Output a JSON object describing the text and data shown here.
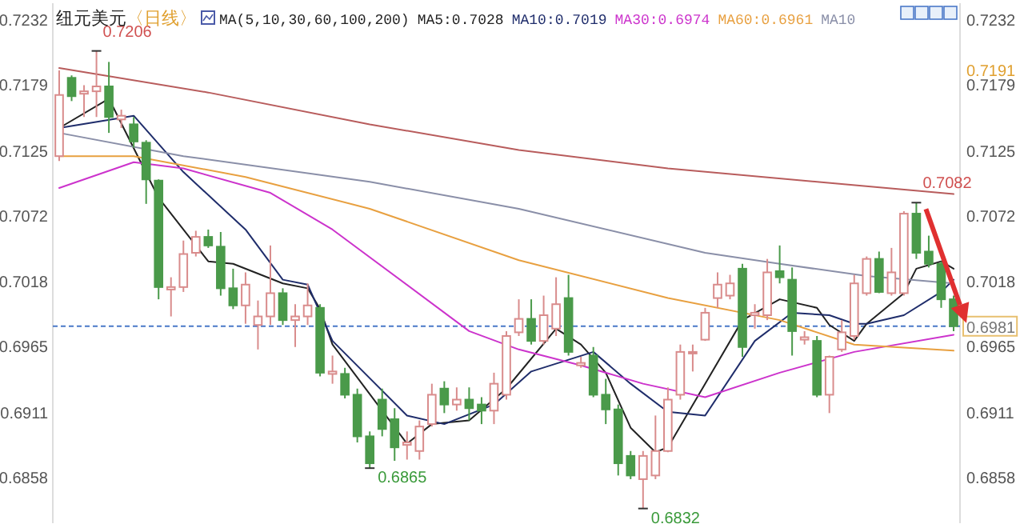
{
  "chart_data": {
    "type": "candlestick",
    "title": "纽元美元",
    "subtitle": "〈日线〉",
    "legend_title": "MA(5,10,30,60,100,200)",
    "legend": "top",
    "categories": [
      null,
      null,
      null,
      null,
      null,
      null,
      null,
      null,
      null,
      null,
      null,
      null,
      null,
      null,
      null,
      null,
      null,
      null,
      null,
      null,
      null,
      null,
      null,
      null,
      null,
      null,
      null,
      null,
      null,
      null,
      null,
      null,
      null,
      null,
      null,
      null,
      null,
      null,
      null,
      null,
      null,
      null,
      null,
      null,
      null,
      null,
      null,
      null,
      null,
      null,
      null,
      null,
      null,
      null,
      null,
      null,
      null,
      null,
      null,
      null,
      null,
      null,
      null,
      null,
      null,
      null,
      null,
      null,
      null,
      null,
      null,
      null,
      null
    ],
    "ohlc": [
      [
        0.712,
        0.719,
        0.7116,
        0.717
      ],
      [
        0.7184,
        0.7186,
        0.7165,
        0.7169
      ],
      [
        0.7171,
        0.7178,
        0.7152,
        0.7173
      ],
      [
        0.7173,
        0.7206,
        0.7152,
        0.7177
      ],
      [
        0.7177,
        0.7197,
        0.7139,
        0.7152
      ],
      [
        0.715,
        0.7158,
        0.7143,
        0.7153
      ],
      [
        0.7146,
        0.7152,
        0.7127,
        0.7132
      ],
      [
        0.7131,
        0.7133,
        0.7081,
        0.7101
      ],
      [
        0.71,
        0.7101,
        0.7003,
        0.7013
      ],
      [
        0.7011,
        0.7021,
        0.6989,
        0.7013
      ],
      [
        0.7013,
        0.7051,
        0.7009,
        0.704
      ],
      [
        0.7041,
        0.7059,
        0.7038,
        0.7054
      ],
      [
        0.7054,
        0.706,
        0.7045,
        0.7047
      ],
      [
        0.7046,
        0.7058,
        0.7006,
        0.7012
      ],
      [
        0.7012,
        0.7028,
        0.6995,
        0.6998
      ],
      [
        0.6998,
        0.7025,
        0.6983,
        0.7015
      ],
      [
        0.6982,
        0.7002,
        0.6962,
        0.6989
      ],
      [
        0.6989,
        0.7047,
        0.6982,
        0.7008
      ],
      [
        0.7008,
        0.7012,
        0.6982,
        0.6986
      ],
      [
        0.6986,
        0.6999,
        0.6964,
        0.6989
      ],
      [
        0.6989,
        0.7016,
        0.6982,
        0.6998
      ],
      [
        0.6996,
        0.6999,
        0.694,
        0.6943
      ],
      [
        0.6942,
        0.6957,
        0.6934,
        0.6944
      ],
      [
        0.6942,
        0.6947,
        0.6922,
        0.6925
      ],
      [
        0.6925,
        0.693,
        0.6886,
        0.6891
      ],
      [
        0.6891,
        0.6895,
        0.6865,
        0.6869
      ],
      [
        0.6921,
        0.693,
        0.6891,
        0.6897
      ],
      [
        0.6905,
        0.6914,
        0.6871,
        0.6882
      ],
      [
        0.6884,
        0.6895,
        0.6872,
        0.6886
      ],
      [
        0.6879,
        0.6904,
        0.6872,
        0.6899
      ],
      [
        0.6901,
        0.6934,
        0.6899,
        0.6925
      ],
      [
        0.693,
        0.6936,
        0.691,
        0.6917
      ],
      [
        0.6917,
        0.6931,
        0.6912,
        0.6921
      ],
      [
        0.6921,
        0.6931,
        0.6904,
        0.6914
      ],
      [
        0.6917,
        0.6923,
        0.6901,
        0.6912
      ],
      [
        0.6912,
        0.6943,
        0.6901,
        0.6934
      ],
      [
        0.6925,
        0.6977,
        0.6921,
        0.6973
      ],
      [
        0.6976,
        0.7003,
        0.6973,
        0.6987
      ],
      [
        0.6987,
        0.7003,
        0.6966,
        0.6969
      ],
      [
        0.6969,
        0.7006,
        0.6966,
        0.699
      ],
      [
        0.6979,
        0.7021,
        0.6973,
        0.6999
      ],
      [
        0.7004,
        0.7023,
        0.6957,
        0.696
      ],
      [
        0.6949,
        0.6956,
        0.6947,
        0.6951
      ],
      [
        0.6957,
        0.6964,
        0.6923,
        0.6925
      ],
      [
        0.6925,
        0.6938,
        0.6901,
        0.6913
      ],
      [
        0.6913,
        0.6917,
        0.6859,
        0.6869
      ],
      [
        0.6875,
        0.6879,
        0.6856,
        0.6859
      ],
      [
        0.6856,
        0.6879,
        0.6832,
        0.6875
      ],
      [
        0.6859,
        0.6908,
        0.6856,
        0.6879
      ],
      [
        0.6879,
        0.6931,
        0.6878,
        0.6921
      ],
      [
        0.6925,
        0.6966,
        0.6921,
        0.696
      ],
      [
        0.6959,
        0.6966,
        0.6944,
        0.696
      ],
      [
        0.697,
        0.6996,
        0.6969,
        0.6992
      ],
      [
        0.7004,
        0.7025,
        0.6996,
        0.7015
      ],
      [
        0.7006,
        0.7023,
        0.7003,
        0.7016
      ],
      [
        0.7028,
        0.7032,
        0.6956,
        0.6964
      ],
      [
        0.699,
        0.6999,
        0.6979,
        0.6992
      ],
      [
        0.699,
        0.7036,
        0.6986,
        0.7025
      ],
      [
        0.7026,
        0.7047,
        0.7016,
        0.7021
      ],
      [
        0.7019,
        0.7029,
        0.6957,
        0.6977
      ],
      [
        0.697,
        0.6977,
        0.6966,
        0.6972
      ],
      [
        0.6969,
        0.6973,
        0.6923,
        0.6925
      ],
      [
        0.6925,
        0.6957,
        0.691,
        0.6956
      ],
      [
        0.6962,
        0.6986,
        0.696,
        0.6976
      ],
      [
        0.6973,
        0.7023,
        0.697,
        0.7016
      ],
      [
        0.7008,
        0.7038,
        0.7006,
        0.7036
      ],
      [
        0.7036,
        0.7042,
        0.7008,
        0.7009
      ],
      [
        0.7008,
        0.7045,
        0.7006,
        0.7025
      ],
      [
        0.7008,
        0.7075,
        0.7006,
        0.7073
      ],
      [
        0.7073,
        0.7082,
        0.7036,
        0.7041
      ],
      [
        0.7042,
        0.7055,
        0.7029,
        0.7032
      ],
      [
        0.7032,
        0.7034,
        0.6996,
        0.7003
      ],
      [
        0.7003,
        0.7006,
        0.6977,
        0.6981
      ]
    ],
    "series": [
      {
        "type": "line",
        "name": "MA5:0.7028",
        "color": "#222222",
        "values": [
          0.7143,
          null,
          null,
          null,
          0.7167,
          null,
          null,
          null,
          0.7086,
          null,
          null,
          null,
          0.7034,
          null,
          0.7032,
          null,
          null,
          null,
          0.7016,
          null,
          0.7012,
          0.6995,
          0.6966,
          null,
          null,
          null,
          null,
          null,
          0.6885,
          null,
          0.6901,
          null,
          null,
          0.6904,
          null,
          null,
          0.693,
          null,
          null,
          null,
          0.6979,
          null,
          0.6966,
          null,
          0.6943,
          null,
          0.6898,
          null,
          0.6878,
          0.6882,
          null,
          null,
          0.6934,
          null,
          null,
          0.6986,
          null,
          null,
          0.7003,
          null,
          null,
          0.6996,
          0.6982,
          null,
          0.6969,
          0.6983,
          null,
          null,
          0.7008,
          0.7028,
          null,
          0.7034,
          0.7028
        ]
      },
      {
        "type": "line",
        "name": "MA10:0.7019",
        "color": "#1f2d6b",
        "values": [
          0.7143,
          null,
          null,
          null,
          null,
          null,
          0.7153,
          null,
          null,
          null,
          0.7107,
          null,
          null,
          null,
          null,
          0.706,
          null,
          null,
          0.7019,
          null,
          0.7015,
          null,
          0.6969,
          null,
          null,
          null,
          null,
          null,
          0.6908,
          null,
          null,
          0.6901,
          null,
          null,
          null,
          0.6917,
          null,
          null,
          0.6944,
          null,
          null,
          null,
          null,
          0.696,
          null,
          null,
          0.6934,
          null,
          null,
          0.6911,
          null,
          null,
          0.6908,
          null,
          null,
          null,
          0.6969,
          null,
          null,
          0.6992,
          null,
          null,
          0.699,
          null,
          0.6983,
          0.6983,
          null,
          null,
          0.699,
          null,
          null,
          0.7009,
          0.7019
        ]
      },
      {
        "type": "line",
        "name": "MA30:0.6974",
        "color": "#cc33cc",
        "values": [
          0.7094,
          null,
          null,
          null,
          null,
          null,
          0.7115,
          null,
          null,
          null,
          0.711,
          null,
          null,
          null,
          null,
          null,
          null,
          0.709,
          null,
          null,
          null,
          null,
          0.706,
          null,
          null,
          null,
          null,
          null,
          null,
          null,
          null,
          null,
          null,
          0.6977,
          null,
          null,
          null,
          0.6962,
          null,
          null,
          null,
          null,
          0.6949,
          null,
          null,
          null,
          null,
          0.6934,
          null,
          null,
          null,
          null,
          0.6923,
          null,
          null,
          null,
          null,
          null,
          0.6943,
          null,
          null,
          null,
          null,
          null,
          0.696,
          null,
          null,
          null,
          null,
          null,
          null,
          null,
          0.6974
        ]
      },
      {
        "type": "line",
        "name": "MA60:0.6961",
        "color": "#e8a040",
        "values": [
          0.712,
          null,
          null,
          null,
          null,
          null,
          0.712,
          null,
          null,
          null,
          null,
          null,
          null,
          null,
          null,
          0.7103,
          null,
          null,
          null,
          null,
          null,
          null,
          null,
          null,
          null,
          0.7077,
          null,
          null,
          null,
          null,
          null,
          null,
          null,
          null,
          null,
          null,
          null,
          0.7035,
          null,
          null,
          null,
          null,
          null,
          null,
          null,
          null,
          null,
          null,
          null,
          0.7004,
          null,
          null,
          null,
          null,
          null,
          null,
          null,
          null,
          0.6986,
          null,
          null,
          null,
          null,
          null,
          0.6966,
          null,
          null,
          null,
          null,
          null,
          null,
          null,
          0.6961
        ]
      },
      {
        "type": "line",
        "name": "MA10",
        "color": "#8a8fa8",
        "values": [
          0.7139,
          null,
          null,
          null,
          null,
          null,
          null,
          null,
          null,
          null,
          0.712,
          null,
          null,
          null,
          null,
          null,
          null,
          null,
          null,
          null,
          null,
          null,
          null,
          null,
          null,
          0.7099,
          null,
          null,
          null,
          null,
          null,
          null,
          null,
          null,
          null,
          null,
          null,
          0.7077,
          null,
          null,
          null,
          null,
          null,
          null,
          null,
          null,
          null,
          null,
          null,
          null,
          null,
          null,
          0.7041,
          null,
          null,
          null,
          null,
          null,
          0.7032,
          null,
          null,
          null,
          null,
          null,
          null,
          0.7022,
          null,
          null,
          null,
          null,
          null,
          null,
          0.7016
        ]
      },
      {
        "type": "line",
        "color": "#b85c5c",
        "values": [
          0.7192,
          null,
          null,
          null,
          null,
          null,
          null,
          null,
          null,
          null,
          null,
          null,
          0.7172,
          null,
          null,
          null,
          null,
          null,
          null,
          null,
          null,
          null,
          null,
          null,
          null,
          0.7146,
          null,
          null,
          null,
          null,
          null,
          null,
          null,
          null,
          null,
          null,
          null,
          0.7125,
          null,
          null,
          null,
          null,
          null,
          null,
          null,
          null,
          null,
          null,
          null,
          0.711,
          null,
          null,
          null,
          null,
          null,
          null,
          null,
          null,
          null,
          null,
          null,
          0.7099,
          null,
          null,
          null,
          null,
          null,
          null,
          null,
          null,
          null,
          null,
          0.7089
        ]
      }
    ],
    "ylim": [
      0.682,
      0.7245
    ],
    "yticks": [
      0.7232,
      0.7179,
      0.7125,
      0.7072,
      0.7018,
      0.6965,
      0.6911,
      0.6858
    ],
    "y2lim": [
      0.682,
      0.7245
    ],
    "y2ticks": [
      0.7232,
      0.7179,
      0.7125,
      0.7072,
      0.7018,
      0.6965,
      0.6911,
      0.6858
    ],
    "ref_lines": [
      {
        "axis": "y2",
        "value": 0.6981,
        "label": "0.6981",
        "color": "#4a78c8",
        "line_style": "dashed"
      }
    ],
    "annotations": [
      "0.7206",
      "0.7082",
      "0.6865",
      "0.6832",
      "0.7191"
    ]
  }
}
